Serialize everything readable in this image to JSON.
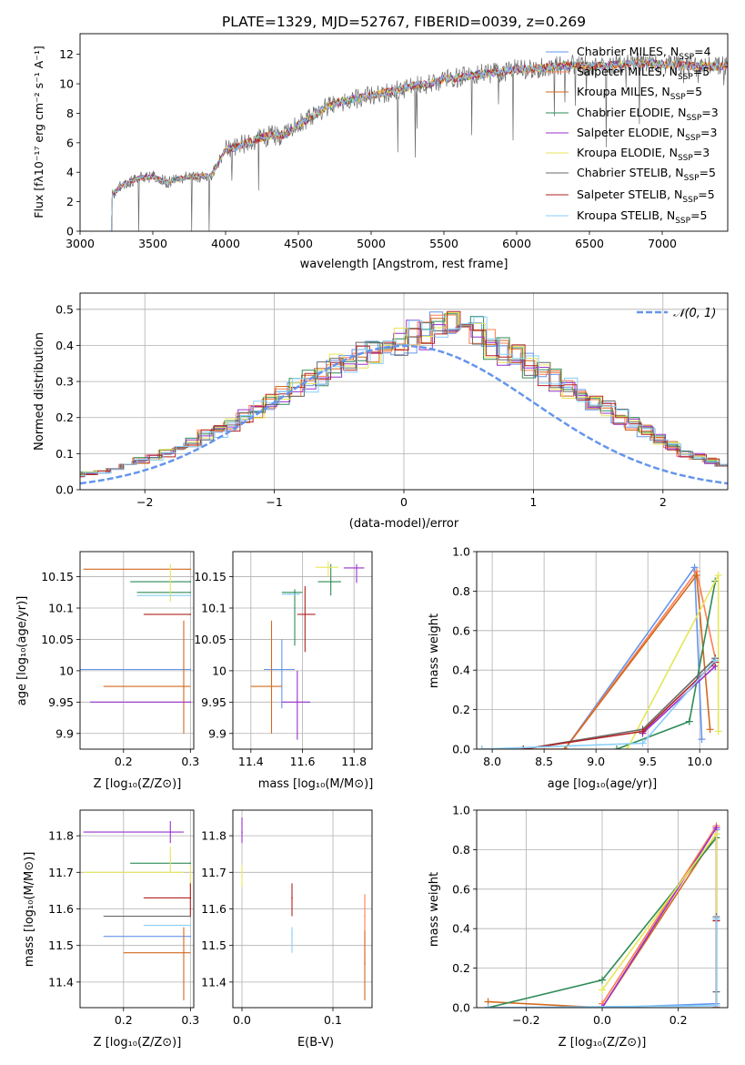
{
  "figure_title": "PLATE=1329, MJD=52767, FIBERID=0039, z=0.269",
  "series_names": [
    "Chabrier MILES, N$_{SSP}$=4",
    "Salpeter MILES, N$_{SSP}$=5",
    "Kroupa MILES, N$_{SSP}$=5",
    "Chabrier ELODIE, N$_{SSP}$=3",
    "Salpeter ELODIE, N$_{SSP}$=3",
    "Kroupa ELODIE, N$_{SSP}$=3",
    "Chabrier STELIB, N$_{SSP}$=5",
    "Salpeter STELIB, N$_{SSP}$=5",
    "Kroupa STELIB, N$_{SSP}$=5"
  ],
  "legend_text": {
    "s0": {
      "a": "Chabrier MILES, N",
      "sub": "SSP",
      "b": "=4"
    },
    "s1": {
      "a": "Salpeter MILES, N",
      "sub": "SSP",
      "b": "=5"
    },
    "s2": {
      "a": "Kroupa MILES, N",
      "sub": "SSP",
      "b": "=5"
    },
    "s3": {
      "a": "Chabrier ELODIE, N",
      "sub": "SSP",
      "b": "=3"
    },
    "s4": {
      "a": "Salpeter ELODIE, N",
      "sub": "SSP",
      "b": "=3"
    },
    "s5": {
      "a": "Kroupa ELODIE, N",
      "sub": "SSP",
      "b": "=3"
    },
    "s6": {
      "a": "Chabrier STELIB, N",
      "sub": "SSP",
      "b": "=5"
    },
    "s7": {
      "a": "Salpeter STELIB, N",
      "sub": "SSP",
      "b": "=5"
    },
    "s8": {
      "a": "Kroupa STELIB, N",
      "sub": "SSP",
      "b": "=5"
    }
  },
  "series_colors": [
    "#6495ed",
    "#ff7f50",
    "#d2691e",
    "#2e8b57",
    "#9932cc",
    "#e6e65a",
    "#696969",
    "#b22222",
    "#87cefa"
  ],
  "labels": {
    "spectrum_x": "wavelength [Angstrom, rest frame]",
    "spectrum_y": "Flux [fλ10⁻¹⁷ erg cm⁻² s⁻¹ A⁻¹]",
    "hist_x": "(data-model)/error",
    "hist_y": "Normed distribution",
    "hist_legend": "𝒩(0, 1)",
    "age_y": "age  [log₁₀(age/yr)]",
    "z_x": "Z [log₁₀(Z/Z⊙)]",
    "mass_x": "mass [log₁₀(M/M⊙)]",
    "mass_y": "mass [log₁₀(M/M⊙)]",
    "mw_y": "mass weight",
    "age_x": "age  [log₁₀(age/yr)]",
    "ebv_x": "E(B-V)"
  },
  "chart_data": [
    {
      "type": "line",
      "id": "spectrum",
      "title": "PLATE=1329, MJD=52767, FIBERID=0039, z=0.269",
      "xlim": [
        3000,
        7450
      ],
      "ylim": [
        0,
        13.4
      ],
      "xticks": [
        "3000",
        "3500",
        "4000",
        "4500",
        "5000",
        "5500",
        "6000",
        "6500",
        "7000"
      ],
      "yticks": [
        "0",
        "2",
        "4",
        "6",
        "8",
        "10",
        "12"
      ],
      "continuum_x": [
        3220,
        3300,
        3400,
        3500,
        3600,
        3700,
        3800,
        3900,
        4000,
        4100,
        4200,
        4300,
        4400,
        4500,
        4600,
        4700,
        4800,
        4900,
        5000,
        5100,
        5200,
        5300,
        5400,
        5500,
        5600,
        5700,
        5800,
        5900,
        6000,
        6100,
        6200,
        6300,
        6400,
        6500,
        6600,
        6700,
        6800,
        6900,
        7000,
        7100,
        7200,
        7300,
        7400
      ],
      "continuum_y": [
        2.5,
        3.2,
        3.6,
        3.7,
        3.3,
        3.6,
        3.7,
        3.8,
        5.5,
        5.8,
        6.2,
        6.5,
        6.5,
        7.2,
        7.8,
        8.5,
        8.8,
        9.0,
        9.2,
        9.4,
        9.6,
        9.9,
        10.0,
        10.3,
        10.4,
        10.6,
        10.7,
        10.8,
        11.0,
        11.0,
        11.1,
        11.2,
        11.3,
        11.2,
        11.2,
        11.3,
        11.4,
        11.4,
        11.3,
        11.3,
        11.2,
        11.2,
        11.2
      ],
      "notes": "data drawn as dense spectra from the continuum with absorption features"
    },
    {
      "type": "line",
      "id": "residual_hist",
      "xlabel": "(data-model)/error",
      "ylabel": "Normed distribution",
      "xlim": [
        -2.5,
        2.5
      ],
      "ylim": [
        0,
        0.545
      ],
      "xticks": [
        "−2",
        "−1",
        "0",
        "1",
        "2"
      ],
      "yticks": [
        "0.0",
        "0.1",
        "0.2",
        "0.3",
        "0.4",
        "0.5"
      ],
      "reference_curve": "N(0,1) gaussian",
      "bin_width": 0.1,
      "hist_base": [
        0.02,
        0.025,
        0.03,
        0.035,
        0.04,
        0.045,
        0.05,
        0.06,
        0.07,
        0.08,
        0.09,
        0.1,
        0.12,
        0.13,
        0.15,
        0.16,
        0.18,
        0.2,
        0.22,
        0.24,
        0.26,
        0.28,
        0.3,
        0.32,
        0.34,
        0.36,
        0.37,
        0.38,
        0.4,
        0.41,
        0.42,
        0.43,
        0.44,
        0.45,
        0.44,
        0.43,
        0.4,
        0.38,
        0.36,
        0.34,
        0.32,
        0.3,
        0.28,
        0.26,
        0.24,
        0.22,
        0.2,
        0.18,
        0.16,
        0.14,
        0.12,
        0.1,
        0.09,
        0.08,
        0.07,
        0.06,
        0.05,
        0.045,
        0.04,
        0.035,
        0.03
      ]
    },
    {
      "type": "scatter",
      "id": "age_vs_Z",
      "xlabel": "Z [log10(Z/Zsun)]",
      "ylabel": "age [log10(age/yr)]",
      "xlim": [
        0.135,
        0.305
      ],
      "ylim": [
        9.875,
        10.19
      ],
      "xticks": [
        0.2,
        0.3
      ],
      "yticks": [
        9.9,
        9.95,
        10.0,
        10.05,
        10.1,
        10.15
      ],
      "points": [
        {
          "x": 0.3,
          "y": 10.002,
          "xerr": [
            0.135,
            0.3
          ],
          "s": 0
        },
        {
          "x": 0.29,
          "y": 9.975,
          "xerr": [
            0.17,
            0.3
          ],
          "yerr": [
            9.9,
            10.08
          ],
          "s": 2
        },
        {
          "x": 0.3,
          "y": 10.162,
          "xerr": [
            0.14,
            0.3
          ],
          "s": 2
        },
        {
          "x": 0.3,
          "y": 10.125,
          "xerr": [
            0.22,
            0.3
          ],
          "s": 3
        },
        {
          "x": 0.3,
          "y": 10.142,
          "xerr": [
            0.21,
            0.3
          ],
          "s": 3
        },
        {
          "x": 0.3,
          "y": 9.95,
          "xerr": [
            0.15,
            0.3
          ],
          "s": 4
        },
        {
          "x": 0.27,
          "y": 10.13,
          "yerr": [
            10.11,
            10.17
          ],
          "s": 5
        },
        {
          "x": 0.3,
          "y": 10.09,
          "xerr": [
            0.23,
            0.3
          ],
          "s": 7
        },
        {
          "x": 0.3,
          "y": 10.12,
          "xerr": [
            0.22,
            0.3
          ],
          "s": 8
        }
      ]
    },
    {
      "type": "scatter",
      "id": "age_vs_mass",
      "xlabel": "mass [log10(M/Msun)]",
      "xlim": [
        11.33,
        11.87
      ],
      "ylim": [
        9.875,
        10.19
      ],
      "xticks": [
        11.4,
        11.6,
        11.8
      ],
      "yticks": [
        9.9,
        9.95,
        10.0,
        10.05,
        10.1,
        10.15
      ],
      "points": [
        {
          "x": 11.52,
          "y": 10.002,
          "xerr": [
            11.45,
            11.57
          ],
          "yerr": [
            9.94,
            10.05
          ],
          "s": 0
        },
        {
          "x": 11.48,
          "y": 9.975,
          "xerr": [
            11.4,
            11.52
          ],
          "yerr": [
            9.9,
            10.08
          ],
          "s": 2
        },
        {
          "x": 11.57,
          "y": 10.125,
          "xerr": [
            11.52,
            11.6
          ],
          "yerr": [
            10.04,
            10.13
          ],
          "s": 3
        },
        {
          "x": 11.71,
          "y": 10.142,
          "xerr": [
            11.66,
            11.75
          ],
          "yerr": [
            10.12,
            10.17
          ],
          "s": 3
        },
        {
          "x": 11.81,
          "y": 10.164,
          "xerr": [
            11.76,
            11.84
          ],
          "yerr": [
            10.14,
            10.17
          ],
          "s": 4
        },
        {
          "x": 11.58,
          "y": 9.95,
          "xerr": [
            11.52,
            11.63
          ],
          "yerr": [
            9.89,
            10.0
          ],
          "s": 4
        },
        {
          "x": 11.7,
          "y": 10.165,
          "xerr": [
            11.65,
            11.74
          ],
          "yerr": [
            10.15,
            10.175
          ],
          "s": 5
        },
        {
          "x": 11.61,
          "y": 10.09,
          "xerr": [
            11.58,
            11.65
          ],
          "yerr": [
            10.03,
            10.135
          ],
          "s": 7
        },
        {
          "x": 11.55,
          "y": 10.122,
          "xerr": [
            11.52,
            11.59
          ],
          "s": 8
        }
      ]
    },
    {
      "type": "line",
      "id": "massweight_vs_age",
      "xlabel": "age [log10(age/yr)]",
      "ylabel": "mass weight",
      "xlim": [
        7.85,
        10.27
      ],
      "ylim": [
        0,
        1.0
      ],
      "xticks": [
        "8.0",
        "8.5",
        "9.0",
        "9.5",
        "10.0"
      ],
      "yticks": [
        "0.0",
        "0.2",
        "0.4",
        "0.6",
        "0.8",
        "1.0"
      ],
      "series": [
        {
          "s": 0,
          "x": [
            8.7,
            9.95,
            10.02
          ],
          "y": [
            0.0,
            0.92,
            0.05
          ]
        },
        {
          "s": 1,
          "x": [
            7.9,
            8.7,
            9.97,
            10.15
          ],
          "y": [
            0.0,
            0.0,
            0.9,
            0.46
          ]
        },
        {
          "s": 2,
          "x": [
            8.7,
            9.97,
            10.1
          ],
          "y": [
            0.0,
            0.88,
            0.1
          ]
        },
        {
          "s": 3,
          "x": [
            9.2,
            9.9,
            10.15
          ],
          "y": [
            0.0,
            0.14,
            0.85
          ]
        },
        {
          "s": 4,
          "x": [
            9.45,
            10.15
          ],
          "y": [
            0.08,
            0.42
          ]
        },
        {
          "s": 5,
          "x": [
            9.3,
            10.18,
            10.18
          ],
          "y": [
            0.0,
            0.88,
            0.09
          ]
        },
        {
          "s": 6,
          "x": [
            8.3,
            9.45,
            10.15
          ],
          "y": [
            0.0,
            0.1,
            0.46
          ]
        },
        {
          "s": 7,
          "x": [
            8.3,
            9.45,
            10.15
          ],
          "y": [
            0.0,
            0.09,
            0.44
          ]
        },
        {
          "s": 8,
          "x": [
            7.9,
            9.45,
            10.15
          ],
          "y": [
            0.0,
            0.03,
            0.45
          ]
        }
      ]
    },
    {
      "type": "scatter",
      "id": "mass_vs_Z",
      "xlabel": "Z [log10(Z/Zsun)]",
      "ylabel": "mass [log10(M/Msun)]",
      "xlim": [
        0.135,
        0.305
      ],
      "ylim": [
        11.33,
        11.87
      ],
      "xticks": [
        0.2,
        0.3
      ],
      "yticks": [
        11.4,
        11.5,
        11.6,
        11.7,
        11.8
      ],
      "points": [
        {
          "x": 0.3,
          "y": 11.525,
          "xerr": [
            0.17,
            0.3
          ],
          "s": 0
        },
        {
          "x": 0.29,
          "y": 11.48,
          "xerr": [
            0.2,
            0.3
          ],
          "yerr": [
            11.35,
            11.55
          ],
          "s": 2
        },
        {
          "x": 0.3,
          "y": 11.725,
          "xerr": [
            0.21,
            0.3
          ],
          "s": 3
        },
        {
          "x": 0.27,
          "y": 11.81,
          "xerr": [
            0.14,
            0.29
          ],
          "yerr": [
            11.78,
            11.84
          ],
          "s": 4
        },
        {
          "x": 0.3,
          "y": 11.7,
          "xerr": [
            0.14,
            0.29
          ],
          "yerr": [
            11.65,
            11.72
          ],
          "s": 5
        },
        {
          "x": 0.3,
          "y": 11.58,
          "xerr": [
            0.17,
            0.3
          ],
          "s": 6
        },
        {
          "x": 0.3,
          "y": 11.63,
          "xerr": [
            0.23,
            0.3
          ],
          "yerr": [
            11.58,
            11.67
          ],
          "s": 7
        },
        {
          "x": 0.3,
          "y": 11.555,
          "xerr": [
            0.23,
            0.3
          ],
          "s": 8
        },
        {
          "x": 0.27,
          "y": 11.74,
          "yerr": [
            11.7,
            11.77
          ],
          "s": 5
        }
      ]
    },
    {
      "type": "scatter",
      "id": "mass_vs_ebv",
      "xlabel": "E(B-V)",
      "xlim": [
        -0.01,
        0.143
      ],
      "ylim": [
        11.33,
        11.87
      ],
      "xticks": [
        "0.0",
        "0.1"
      ],
      "yticks": [
        11.4,
        11.5,
        11.6,
        11.7,
        11.8
      ],
      "points": [
        {
          "x": 0.0,
          "y": 11.81,
          "yerr": [
            11.78,
            11.85
          ],
          "s": 4
        },
        {
          "x": 0.0,
          "y": 11.7,
          "yerr": [
            11.66,
            11.72
          ],
          "s": 5
        },
        {
          "x": 0.055,
          "y": 11.63,
          "yerr": [
            11.58,
            11.67
          ],
          "s": 7
        },
        {
          "x": 0.055,
          "y": 11.53,
          "yerr": [
            11.48,
            11.55
          ],
          "s": 8
        },
        {
          "x": 0.135,
          "y": 11.58,
          "yerr": [
            11.45,
            11.64
          ],
          "s": 1
        },
        {
          "x": 0.135,
          "y": 11.45,
          "yerr": [
            11.35,
            11.54
          ],
          "s": 2
        }
      ]
    },
    {
      "type": "line",
      "id": "massweight_vs_Z",
      "xlabel": "Z [log10(Z/Zsun)]",
      "ylabel": "mass weight",
      "xlim": [
        -0.33,
        0.33
      ],
      "ylim": [
        0,
        1.0
      ],
      "xticks": [
        "−0.2",
        "0.0",
        "0.2"
      ],
      "yticks": [
        "0.0",
        "0.2",
        "0.4",
        "0.6",
        "0.8",
        "1.0"
      ],
      "series": [
        {
          "s": 0,
          "x": [
            -0.3,
            0.0,
            0.3,
            0.3
          ],
          "y": [
            0.0,
            0.0,
            0.02,
            0.9
          ]
        },
        {
          "s": 1,
          "x": [
            0.0,
            0.3,
            0.3
          ],
          "y": [
            0.02,
            0.92,
            0.0
          ]
        },
        {
          "s": 2,
          "x": [
            -0.3,
            0.0,
            0.3,
            0.3
          ],
          "y": [
            0.03,
            0.0,
            0.88,
            0.0
          ]
        },
        {
          "s": 3,
          "x": [
            -0.3,
            0.0,
            0.3
          ],
          "y": [
            0.0,
            0.14,
            0.86
          ]
        },
        {
          "s": 4,
          "x": [
            0.0,
            0.3,
            0.3
          ],
          "y": [
            0.0,
            0.91,
            0.44
          ]
        },
        {
          "s": 5,
          "x": [
            0.0,
            0.3,
            0.3
          ],
          "y": [
            0.09,
            0.88,
            0.0
          ]
        },
        {
          "s": 6,
          "x": [
            0.3,
            0.3
          ],
          "y": [
            0.08,
            0.46
          ]
        },
        {
          "s": 7,
          "x": [
            0.3,
            0.3
          ],
          "y": [
            0.0,
            0.44
          ]
        },
        {
          "s": 8,
          "x": [
            -0.3,
            0.3,
            0.3
          ],
          "y": [
            0.0,
            0.01,
            0.45
          ]
        }
      ]
    }
  ]
}
